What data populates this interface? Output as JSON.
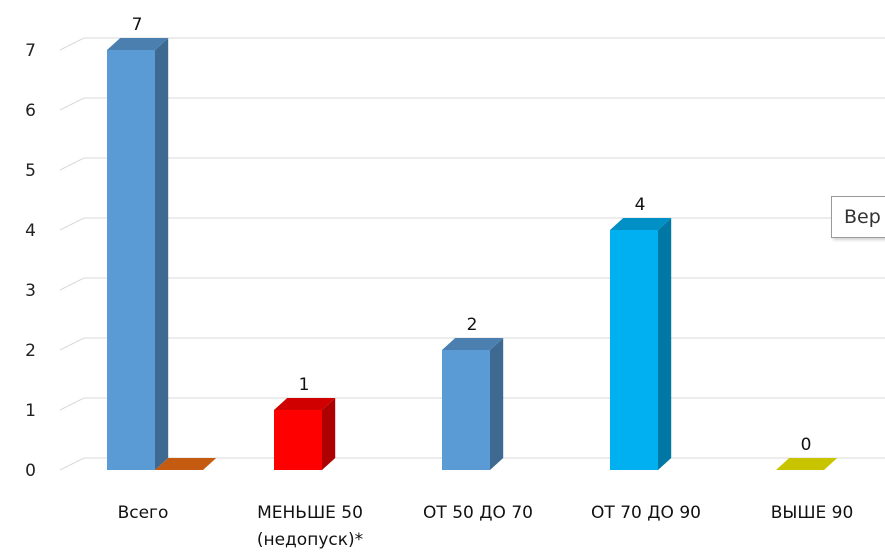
{
  "chart_data": {
    "type": "bar",
    "categories": [
      "Всего",
      "МЕНЬШЕ 50\n(недопуск)*",
      "ОТ 50 ДО 70",
      "ОТ 70 ДО 90",
      "ВЫШЕ 90"
    ],
    "category_lines": [
      [
        "Всего"
      ],
      [
        "МЕНЬШЕ 50",
        "(недопуск)*"
      ],
      [
        "ОТ 50 ДО 70"
      ],
      [
        "ОТ 70 ДО 90"
      ],
      [
        "ВЫШЕ 90"
      ]
    ],
    "values": [
      7,
      1,
      2,
      4,
      0
    ],
    "data_labels": [
      "7",
      "1",
      "2",
      "4",
      "0"
    ],
    "extra_series_values": [
      0
    ],
    "colors": [
      "#5b9bd5",
      "#ff0000",
      "#5b9bd5",
      "#00b0f0",
      "#c9c400"
    ],
    "extra_color": "#c55a11",
    "yticks": [
      "0",
      "1",
      "2",
      "3",
      "4",
      "5",
      "6",
      "7"
    ],
    "ylim": [
      0,
      7
    ],
    "grid": true,
    "style": "3d-column"
  },
  "tooltip": {
    "text": "Вер"
  }
}
